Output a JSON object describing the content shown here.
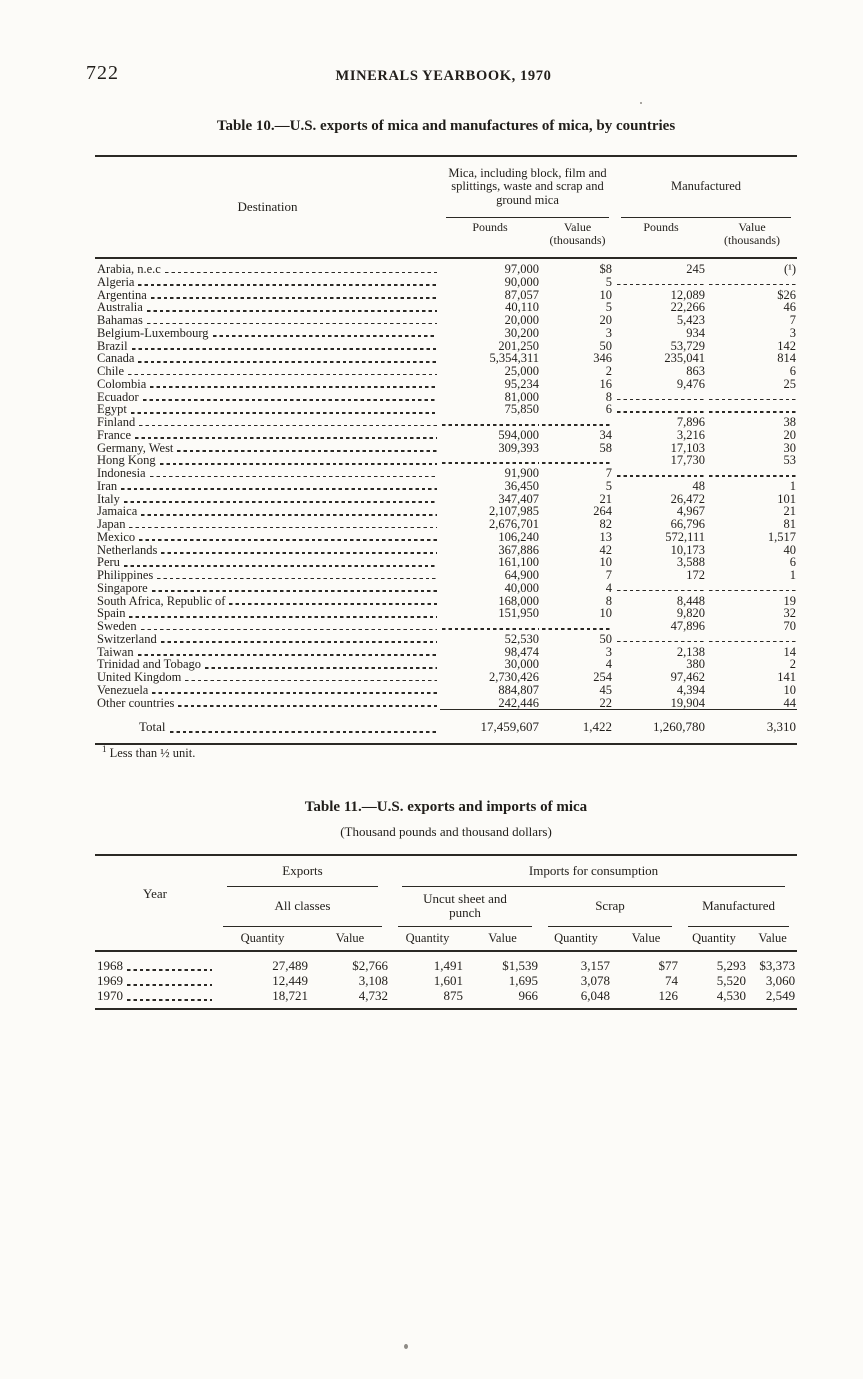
{
  "page": {
    "number": "722",
    "running_title": "MINERALS YEARBOOK, 1970"
  },
  "table10": {
    "title": "Table 10.—U.S. exports of mica and manufactures of mica, by countries",
    "headers": {
      "destination": "Destination",
      "group_mica": "Mica, including block, film and splittings, waste and scrap and ground mica",
      "group_manufactured": "Manufactured",
      "pounds": "Pounds",
      "value": "Value (thousands)"
    },
    "rows": [
      {
        "destination": "Arabia, n.e.c",
        "mica_pounds": "97,000",
        "mica_value": "$8",
        "mfg_pounds": "245",
        "mfg_value": "(¹)"
      },
      {
        "destination": "Algeria",
        "mica_pounds": "90,000",
        "mica_value": "5",
        "mfg_pounds": null,
        "mfg_value": null
      },
      {
        "destination": "Argentina",
        "mica_pounds": "87,057",
        "mica_value": "10",
        "mfg_pounds": "12,089",
        "mfg_value": "$26"
      },
      {
        "destination": "Australia",
        "mica_pounds": "40,110",
        "mica_value": "5",
        "mfg_pounds": "22,266",
        "mfg_value": "46"
      },
      {
        "destination": "Bahamas",
        "mica_pounds": "20,000",
        "mica_value": "20",
        "mfg_pounds": "5,423",
        "mfg_value": "7"
      },
      {
        "destination": "Belgium-Luxembourg",
        "mica_pounds": "30,200",
        "mica_value": "3",
        "mfg_pounds": "934",
        "mfg_value": "3"
      },
      {
        "destination": "Brazil",
        "mica_pounds": "201,250",
        "mica_value": "50",
        "mfg_pounds": "53,729",
        "mfg_value": "142"
      },
      {
        "destination": "Canada",
        "mica_pounds": "5,354,311",
        "mica_value": "346",
        "mfg_pounds": "235,041",
        "mfg_value": "814"
      },
      {
        "destination": "Chile",
        "mica_pounds": "25,000",
        "mica_value": "2",
        "mfg_pounds": "863",
        "mfg_value": "6"
      },
      {
        "destination": "Colombia",
        "mica_pounds": "95,234",
        "mica_value": "16",
        "mfg_pounds": "9,476",
        "mfg_value": "25"
      },
      {
        "destination": "Ecuador",
        "mica_pounds": "81,000",
        "mica_value": "8",
        "mfg_pounds": null,
        "mfg_value": null
      },
      {
        "destination": "Egypt",
        "mica_pounds": "75,850",
        "mica_value": "6",
        "mfg_pounds": null,
        "mfg_value": null
      },
      {
        "destination": "Finland",
        "mica_pounds": null,
        "mica_value": null,
        "mfg_pounds": "7,896",
        "mfg_value": "38"
      },
      {
        "destination": "France",
        "mica_pounds": "594,000",
        "mica_value": "34",
        "mfg_pounds": "3,216",
        "mfg_value": "20"
      },
      {
        "destination": "Germany, West",
        "mica_pounds": "309,393",
        "mica_value": "58",
        "mfg_pounds": "17,103",
        "mfg_value": "30"
      },
      {
        "destination": "Hong Kong",
        "mica_pounds": null,
        "mica_value": null,
        "mfg_pounds": "17,730",
        "mfg_value": "53"
      },
      {
        "destination": "Indonesia",
        "mica_pounds": "91,900",
        "mica_value": "7",
        "mfg_pounds": null,
        "mfg_value": null
      },
      {
        "destination": "Iran",
        "mica_pounds": "36,450",
        "mica_value": "5",
        "mfg_pounds": "48",
        "mfg_value": "1"
      },
      {
        "destination": "Italy",
        "mica_pounds": "347,407",
        "mica_value": "21",
        "mfg_pounds": "26,472",
        "mfg_value": "101"
      },
      {
        "destination": "Jamaica",
        "mica_pounds": "2,107,985",
        "mica_value": "264",
        "mfg_pounds": "4,967",
        "mfg_value": "21"
      },
      {
        "destination": "Japan",
        "mica_pounds": "2,676,701",
        "mica_value": "82",
        "mfg_pounds": "66,796",
        "mfg_value": "81"
      },
      {
        "destination": "Mexico",
        "mica_pounds": "106,240",
        "mica_value": "13",
        "mfg_pounds": "572,111",
        "mfg_value": "1,517"
      },
      {
        "destination": "Netherlands",
        "mica_pounds": "367,886",
        "mica_value": "42",
        "mfg_pounds": "10,173",
        "mfg_value": "40"
      },
      {
        "destination": "Peru",
        "mica_pounds": "161,100",
        "mica_value": "10",
        "mfg_pounds": "3,588",
        "mfg_value": "6"
      },
      {
        "destination": "Philippines",
        "mica_pounds": "64,900",
        "mica_value": "7",
        "mfg_pounds": "172",
        "mfg_value": "1"
      },
      {
        "destination": "Singapore",
        "mica_pounds": "40,000",
        "mica_value": "4",
        "mfg_pounds": null,
        "mfg_value": null
      },
      {
        "destination": "South Africa, Republic of",
        "mica_pounds": "168,000",
        "mica_value": "8",
        "mfg_pounds": "8,448",
        "mfg_value": "19"
      },
      {
        "destination": "Spain",
        "mica_pounds": "151,950",
        "mica_value": "10",
        "mfg_pounds": "9,820",
        "mfg_value": "32"
      },
      {
        "destination": "Sweden",
        "mica_pounds": null,
        "mica_value": null,
        "mfg_pounds": "47,896",
        "mfg_value": "70"
      },
      {
        "destination": "Switzerland",
        "mica_pounds": "52,530",
        "mica_value": "50",
        "mfg_pounds": null,
        "mfg_value": null
      },
      {
        "destination": "Taiwan",
        "mica_pounds": "98,474",
        "mica_value": "3",
        "mfg_pounds": "2,138",
        "mfg_value": "14"
      },
      {
        "destination": "Trinidad and Tobago",
        "mica_pounds": "30,000",
        "mica_value": "4",
        "mfg_pounds": "380",
        "mfg_value": "2"
      },
      {
        "destination": "United Kingdom",
        "mica_pounds": "2,730,426",
        "mica_value": "254",
        "mfg_pounds": "97,462",
        "mfg_value": "141"
      },
      {
        "destination": "Venezuela",
        "mica_pounds": "884,807",
        "mica_value": "45",
        "mfg_pounds": "4,394",
        "mfg_value": "10"
      },
      {
        "destination": "Other countries",
        "mica_pounds": "242,446",
        "mica_value": "22",
        "mfg_pounds": "19,904",
        "mfg_value": "44"
      }
    ],
    "total": {
      "label": "Total",
      "mica_pounds": "17,459,607",
      "mica_value": "1,422",
      "mfg_pounds": "1,260,780",
      "mfg_value": "3,310"
    },
    "footnote_marker": "1",
    "footnote_text": " Less than ½ unit."
  },
  "table11": {
    "title": "Table 11.—U.S. exports and imports of mica",
    "subtitle": "(Thousand pounds and thousand dollars)",
    "headers": {
      "year": "Year",
      "exports": "Exports",
      "imports": "Imports for consumption",
      "groups": [
        "All classes",
        "Uncut sheet and punch",
        "Scrap",
        "Manufactured"
      ],
      "quantity": "Quantity",
      "value": "Value"
    },
    "rows": [
      {
        "year": "1968",
        "all_q": "27,489",
        "all_v": "$2,766",
        "uncut_q": "1,491",
        "uncut_v": "$1,539",
        "scrap_q": "3,157",
        "scrap_v": "$77",
        "mfg_q": "5,293",
        "mfg_v": "$3,373"
      },
      {
        "year": "1969",
        "all_q": "12,449",
        "all_v": "3,108",
        "uncut_q": "1,601",
        "uncut_v": "1,695",
        "scrap_q": "3,078",
        "scrap_v": "74",
        "mfg_q": "5,520",
        "mfg_v": "3,060"
      },
      {
        "year": "1970",
        "all_q": "18,721",
        "all_v": "4,732",
        "uncut_q": "875",
        "uncut_v": "966",
        "scrap_q": "6,048",
        "scrap_v": "126",
        "mfg_q": "4,530",
        "mfg_v": "2,549"
      }
    ]
  }
}
